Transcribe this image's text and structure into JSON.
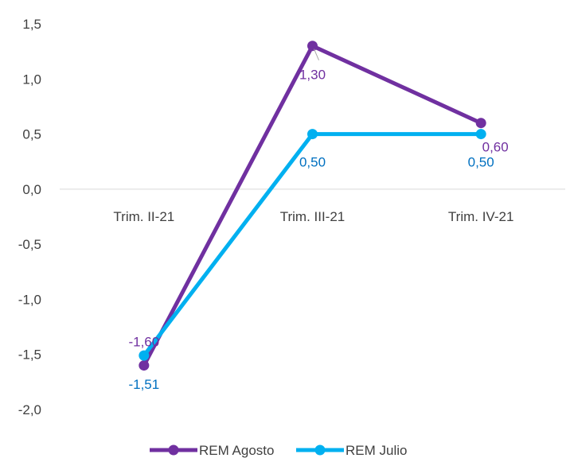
{
  "chart_data": {
    "type": "line",
    "categories": [
      "Trim. II-21",
      "Trim. III-21",
      "Trim. IV-21"
    ],
    "series": [
      {
        "name": "REM Agosto",
        "values": [
          -1.6,
          1.3,
          0.6
        ],
        "labels": [
          "-1,60",
          "1,30",
          "0,60"
        ],
        "color": "#7030A0"
      },
      {
        "name": "REM Julio",
        "values": [
          -1.51,
          0.5,
          0.5
        ],
        "labels": [
          "-1,51",
          "0,50",
          "0,50"
        ],
        "color": "#00B0F0",
        "label_color": "#0070C0"
      }
    ],
    "yticks": [
      "1,5",
      "1,0",
      "0,5",
      "0,0",
      "-0,5",
      "-1,0",
      "-1,5",
      "-2,0"
    ],
    "ylim": [
      -2.0,
      1.5
    ],
    "grid": false,
    "legend": "bottom",
    "title": "",
    "xlabel": "",
    "ylabel": ""
  }
}
